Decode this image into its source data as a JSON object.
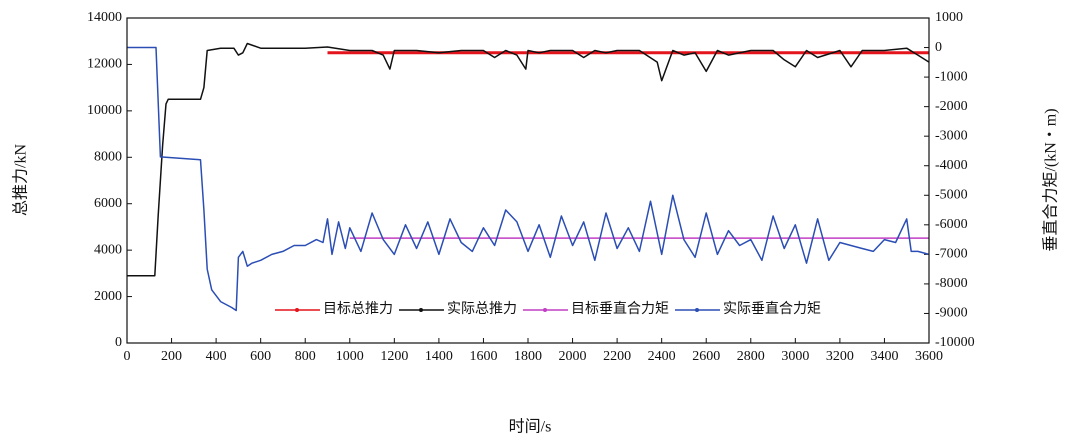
{
  "chart_data": {
    "type": "line",
    "x_label": "时间/s",
    "y_label": "总推力/kN",
    "y2_label": "垂直合力矩/(kN・m)",
    "xlim": [
      0,
      3600
    ],
    "xticks": [
      0,
      200,
      400,
      600,
      800,
      1000,
      1200,
      1400,
      1600,
      1800,
      2000,
      2200,
      2400,
      2600,
      2800,
      3000,
      3200,
      3400,
      3600
    ],
    "ylim": [
      0,
      14000
    ],
    "yticks": [
      0,
      2000,
      4000,
      6000,
      8000,
      10000,
      12000,
      14000
    ],
    "y2lim": [
      -10000,
      1000
    ],
    "y2ticks": [
      -10000,
      -9000,
      -8000,
      -7000,
      -6000,
      -5000,
      -4000,
      -3000,
      -2000,
      -1000,
      0,
      1000
    ],
    "series": [
      {
        "name": "目标总推力",
        "color": "#e3141c",
        "x": [
          900,
          3600
        ],
        "values": [
          12500,
          12500
        ]
      },
      {
        "name": "实际总推力",
        "color": "#111111",
        "x": [
          0,
          125,
          140,
          160,
          175,
          185,
          330,
          345,
          360,
          420,
          480,
          500,
          520,
          540,
          600,
          700,
          800,
          900,
          1000,
          1100,
          1150,
          1180,
          1200,
          1300,
          1400,
          1500,
          1600,
          1650,
          1700,
          1750,
          1790,
          1800,
          1850,
          1900,
          2000,
          2050,
          2100,
          2150,
          2200,
          2300,
          2380,
          2400,
          2450,
          2500,
          2550,
          2600,
          2650,
          2700,
          2800,
          2900,
          2950,
          3000,
          3050,
          3100,
          3200,
          3250,
          3300,
          3400,
          3500,
          3550,
          3600
        ],
        "values": [
          2900,
          2900,
          5500,
          8500,
          10300,
          10500,
          10500,
          11000,
          12600,
          12700,
          12700,
          12400,
          12500,
          12900,
          12700,
          12700,
          12700,
          12750,
          12600,
          12600,
          12400,
          11800,
          12600,
          12600,
          12500,
          12600,
          12600,
          12300,
          12600,
          12400,
          11800,
          12600,
          12500,
          12600,
          12600,
          12300,
          12600,
          12500,
          12600,
          12600,
          12100,
          11300,
          12600,
          12400,
          12500,
          11700,
          12600,
          12400,
          12600,
          12600,
          12200,
          11900,
          12600,
          12300,
          12600,
          11900,
          12600,
          12600,
          12700,
          12400,
          12100
        ]
      },
      {
        "name": "目标垂直合力矩",
        "color": "#c23ec4",
        "axis": "y2",
        "x": [
          1000,
          3600
        ],
        "values": [
          -6450,
          -6450
        ]
      },
      {
        "name": "实际垂直合力矩",
        "color": "#2b4eb5",
        "axis": "y2",
        "x": [
          0,
          130,
          150,
          330,
          345,
          360,
          380,
          420,
          470,
          490,
          500,
          520,
          540,
          560,
          600,
          650,
          700,
          750,
          800,
          850,
          880,
          900,
          920,
          950,
          980,
          1000,
          1050,
          1100,
          1150,
          1200,
          1250,
          1300,
          1350,
          1400,
          1450,
          1500,
          1550,
          1600,
          1650,
          1700,
          1750,
          1800,
          1850,
          1900,
          1950,
          2000,
          2050,
          2100,
          2150,
          2200,
          2250,
          2300,
          2350,
          2400,
          2450,
          2500,
          2550,
          2600,
          2650,
          2700,
          2750,
          2800,
          2850,
          2900,
          2950,
          3000,
          3050,
          3100,
          3150,
          3200,
          3250,
          3300,
          3350,
          3400,
          3450,
          3500,
          3520,
          3550,
          3600
        ],
        "values": [
          0,
          0,
          -3700,
          -3800,
          -5500,
          -7500,
          -8200,
          -8600,
          -8800,
          -8900,
          -7100,
          -6900,
          -7400,
          -7300,
          -7200,
          -7000,
          -6900,
          -6700,
          -6700,
          -6500,
          -6600,
          -5800,
          -7000,
          -5900,
          -6800,
          -6100,
          -6900,
          -5600,
          -6500,
          -7000,
          -6000,
          -6800,
          -5900,
          -7000,
          -5800,
          -6600,
          -6900,
          -6100,
          -6700,
          -5500,
          -5900,
          -6900,
          -6000,
          -7100,
          -5700,
          -6700,
          -5900,
          -7200,
          -5600,
          -6800,
          -6100,
          -6900,
          -5200,
          -7000,
          -5000,
          -6500,
          -7100,
          -5600,
          -7000,
          -6200,
          -6700,
          -6500,
          -7200,
          -5700,
          -6800,
          -6000,
          -7300,
          -5800,
          -7200,
          -6600,
          -6700,
          -6800,
          -6900,
          -6500,
          -6600,
          -5800,
          -6900,
          -6900,
          -7000
        ]
      }
    ]
  }
}
